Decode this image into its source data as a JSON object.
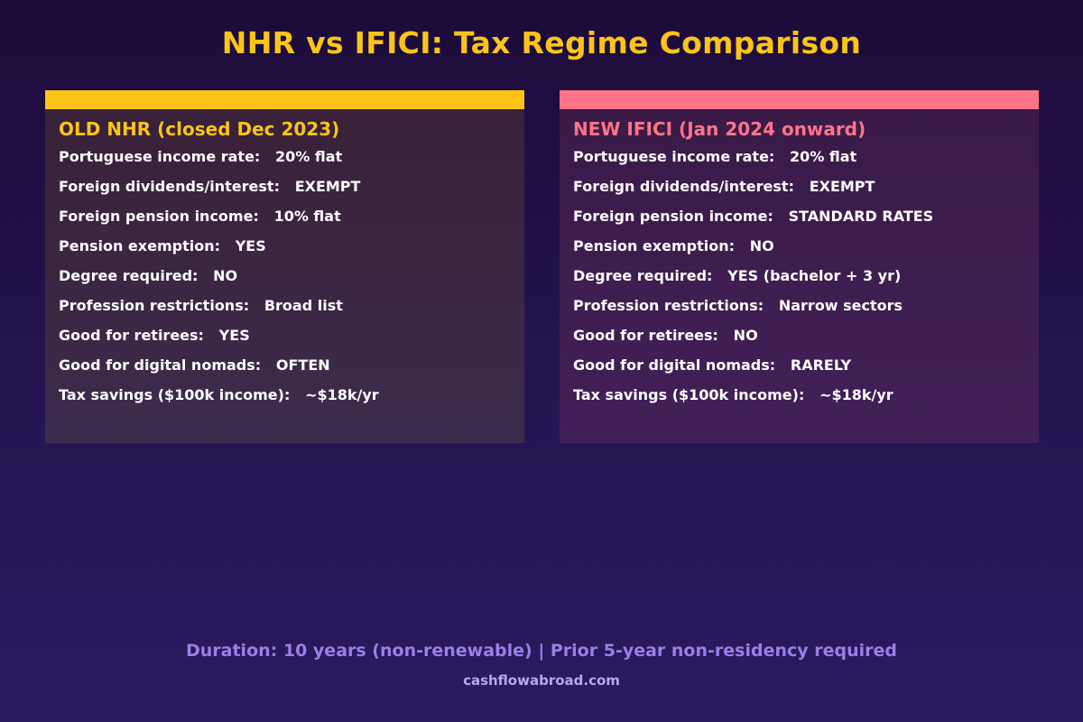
{
  "title": "NHR vs IFICI: Tax Regime Comparison",
  "accent_colors": {
    "old": "#fcc419",
    "new": "#ff7488",
    "footer": "#9b7fe6"
  },
  "old_regime": {
    "heading": "OLD NHR (closed Dec 2023)",
    "rows": [
      {
        "label": "Portuguese income rate:",
        "value": "20% flat"
      },
      {
        "label": "Foreign dividends/interest:",
        "value": "EXEMPT"
      },
      {
        "label": "Foreign pension income:",
        "value": "10% flat"
      },
      {
        "label": "Pension exemption:",
        "value": "YES"
      },
      {
        "label": "Degree required:",
        "value": "NO"
      },
      {
        "label": "Profession restrictions:",
        "value": "Broad list"
      },
      {
        "label": "Good for retirees:",
        "value": "YES"
      },
      {
        "label": "Good for digital nomads:",
        "value": "OFTEN"
      },
      {
        "label": "Tax savings ($100k income):",
        "value": "~$18k/yr"
      }
    ]
  },
  "new_regime": {
    "heading": "NEW IFICI (Jan 2024 onward)",
    "rows": [
      {
        "label": "Portuguese income rate:",
        "value": "20% flat"
      },
      {
        "label": "Foreign dividends/interest:",
        "value": "EXEMPT"
      },
      {
        "label": "Foreign pension income:",
        "value": "STANDARD RATES"
      },
      {
        "label": "Pension exemption:",
        "value": "NO"
      },
      {
        "label": "Degree required:",
        "value": "YES (bachelor + 3 yr)"
      },
      {
        "label": "Profession restrictions:",
        "value": "Narrow sectors"
      },
      {
        "label": "Good for retirees:",
        "value": "NO"
      },
      {
        "label": "Good for digital nomads:",
        "value": "RARELY"
      },
      {
        "label": "Tax savings ($100k income):",
        "value": "~$18k/yr"
      }
    ]
  },
  "footer": {
    "note": "Duration: 10 years (non-renewable) | Prior 5-year non-residency required",
    "site": "cashflowabroad.com"
  }
}
